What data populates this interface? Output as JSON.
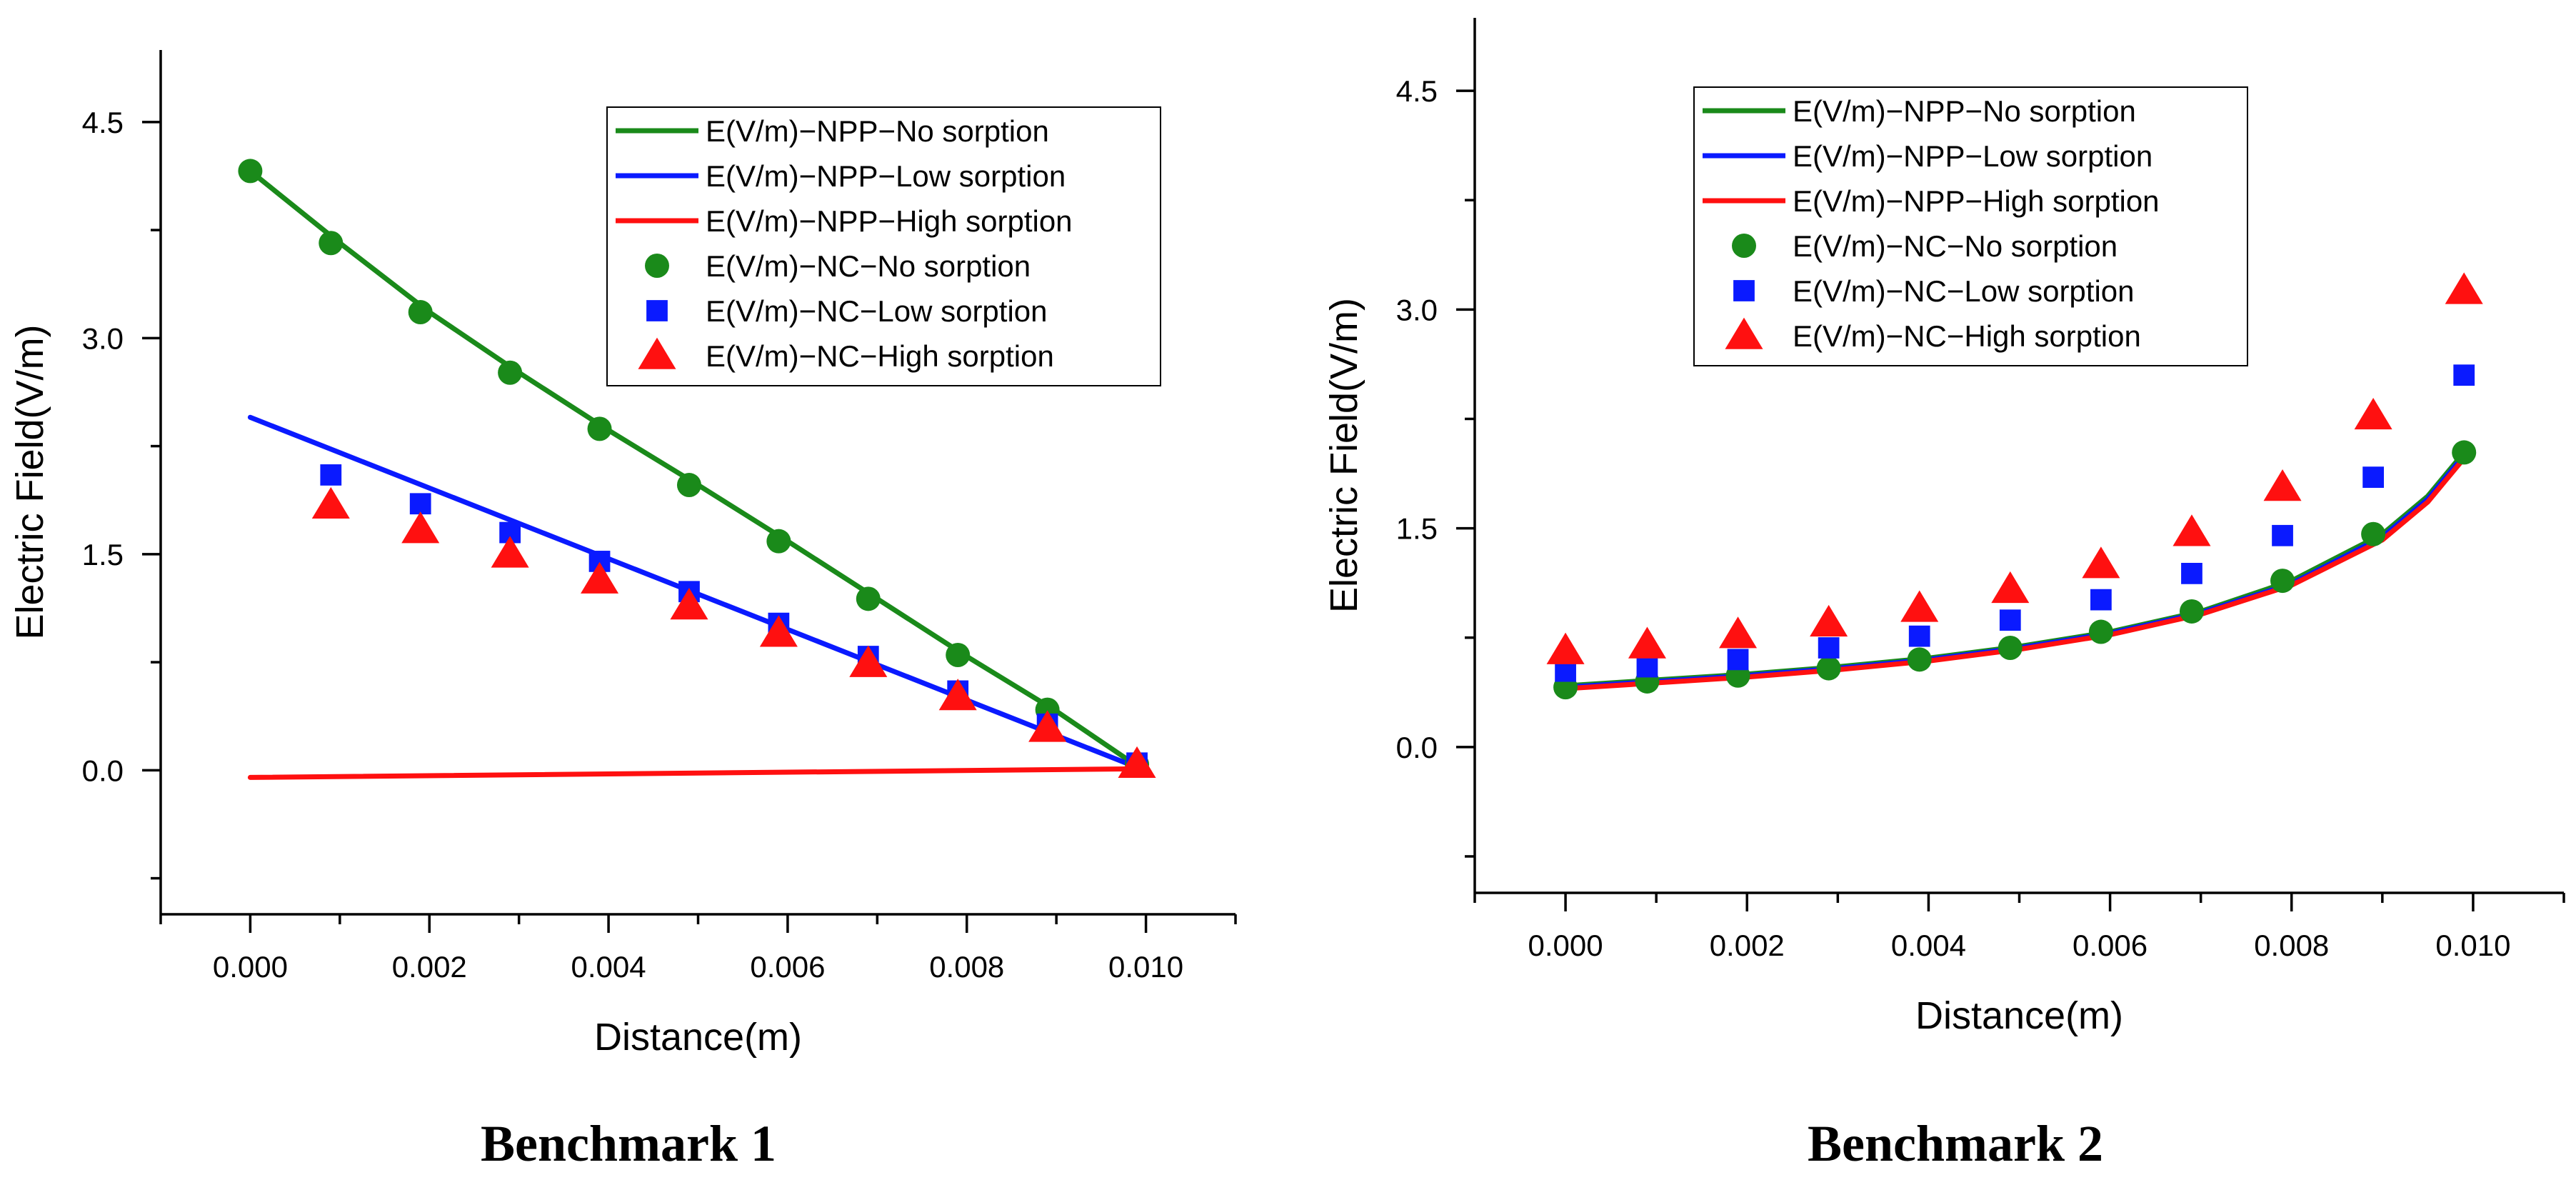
{
  "colors": {
    "no_sorption": "#1a8a1a",
    "low_sorption": "#0a1aff",
    "high_sorption": "#ff1010"
  },
  "chart_data": [
    {
      "type": "line",
      "caption": "Benchmark 1",
      "xlabel": "Distance(m)",
      "ylabel": "Electric Field(V/m)",
      "xlim": [
        -0.001,
        0.011
      ],
      "ylim": [
        -1.0,
        5.0
      ],
      "xticks": [
        "0.000",
        "0.002",
        "0.004",
        "0.006",
        "0.008",
        "0.010"
      ],
      "xtick_values": [
        0.0,
        0.002,
        0.004,
        0.006,
        0.008,
        0.01
      ],
      "yticks": [
        "0.0",
        "1.5",
        "3.0",
        "4.5"
      ],
      "ytick_values": [
        0.0,
        1.5,
        3.0,
        4.5
      ],
      "legend_position": "top-right",
      "series": [
        {
          "name": "E(V/m)−NPP−No sorption",
          "kind": "line",
          "color_key": "no_sorption",
          "x": [
            0.0,
            0.001,
            0.002,
            0.003,
            0.004,
            0.005,
            0.006,
            0.007,
            0.008,
            0.009,
            0.0099
          ],
          "y": [
            4.16,
            3.66,
            3.18,
            2.76,
            2.36,
            1.98,
            1.59,
            1.19,
            0.79,
            0.41,
            0.03
          ]
        },
        {
          "name": "E(V/m)−NPP−Low sorption",
          "kind": "line",
          "color_key": "low_sorption",
          "x": [
            0.0,
            0.0099
          ],
          "y": [
            2.45,
            0.02
          ]
        },
        {
          "name": "E(V/m)−NPP−High sorption",
          "kind": "line",
          "color_key": "high_sorption",
          "x": [
            0.0,
            0.0099
          ],
          "y": [
            -0.05,
            0.01
          ]
        },
        {
          "name": "E(V/m)−NC−No sorption",
          "kind": "circle",
          "color_key": "no_sorption",
          "x": [
            0.0,
            0.0009,
            0.0019,
            0.0029,
            0.0039,
            0.0049,
            0.0059,
            0.0069,
            0.0079,
            0.0089,
            0.0099
          ],
          "y": [
            4.16,
            3.66,
            3.18,
            2.76,
            2.37,
            1.98,
            1.59,
            1.19,
            0.8,
            0.42,
            0.04
          ]
        },
        {
          "name": "E(V/m)−NC−Low sorption",
          "kind": "square",
          "color_key": "low_sorption",
          "x": [
            0.0009,
            0.0019,
            0.0029,
            0.0039,
            0.0049,
            0.0059,
            0.0069,
            0.0079,
            0.0089,
            0.0099
          ],
          "y": [
            2.05,
            1.85,
            1.65,
            1.45,
            1.24,
            1.02,
            0.79,
            0.55,
            0.32,
            0.05
          ]
        },
        {
          "name": "E(V/m)−NC−High sorption",
          "kind": "triangle",
          "color_key": "high_sorption",
          "x": [
            0.0009,
            0.0019,
            0.0029,
            0.0039,
            0.0049,
            0.0059,
            0.0069,
            0.0079,
            0.0089,
            0.0099
          ],
          "y": [
            1.84,
            1.67,
            1.5,
            1.32,
            1.14,
            0.95,
            0.74,
            0.51,
            0.29,
            0.04
          ]
        }
      ]
    },
    {
      "type": "line",
      "caption": "Benchmark 2",
      "xlabel": "Distance(m)",
      "ylabel": "Electric Field(V/m)",
      "xlim": [
        -0.001,
        0.011
      ],
      "ylim": [
        -1.0,
        5.0
      ],
      "xticks": [
        "0.000",
        "0.002",
        "0.004",
        "0.006",
        "0.008",
        "0.010"
      ],
      "xtick_values": [
        0.0,
        0.002,
        0.004,
        0.006,
        0.008,
        0.01
      ],
      "yticks": [
        "0.0",
        "1.5",
        "3.0",
        "4.5"
      ],
      "ytick_values": [
        0.0,
        1.5,
        3.0,
        4.5
      ],
      "legend_position": "top-right",
      "series": [
        {
          "name": "E(V/m)−NPP−No sorption",
          "kind": "line",
          "color_key": "no_sorption",
          "x": [
            0.0,
            0.001,
            0.002,
            0.003,
            0.004,
            0.005,
            0.006,
            0.007,
            0.008,
            0.009,
            0.0095,
            0.0099
          ],
          "y": [
            0.42,
            0.46,
            0.5,
            0.55,
            0.61,
            0.69,
            0.79,
            0.93,
            1.14,
            1.46,
            1.72,
            2.02
          ]
        },
        {
          "name": "E(V/m)−NPP−Low sorption",
          "kind": "line",
          "color_key": "low_sorption",
          "x": [
            0.0,
            0.001,
            0.002,
            0.003,
            0.004,
            0.005,
            0.006,
            0.007,
            0.008,
            0.009,
            0.0095,
            0.0099
          ],
          "y": [
            0.41,
            0.45,
            0.49,
            0.54,
            0.6,
            0.68,
            0.78,
            0.92,
            1.12,
            1.44,
            1.7,
            2.0
          ]
        },
        {
          "name": "E(V/m)−NPP−High sorption",
          "kind": "line",
          "color_key": "high_sorption",
          "x": [
            0.0,
            0.001,
            0.002,
            0.003,
            0.004,
            0.005,
            0.006,
            0.007,
            0.008,
            0.009,
            0.0095,
            0.0099
          ],
          "y": [
            0.4,
            0.44,
            0.48,
            0.53,
            0.59,
            0.67,
            0.77,
            0.91,
            1.11,
            1.42,
            1.68,
            1.98
          ]
        },
        {
          "name": "E(V/m)−NC−No sorption",
          "kind": "circle",
          "color_key": "no_sorption",
          "x": [
            0.0,
            0.0009,
            0.0019,
            0.0029,
            0.0039,
            0.0049,
            0.0059,
            0.0069,
            0.0079,
            0.0089,
            0.0099
          ],
          "y": [
            0.41,
            0.45,
            0.49,
            0.54,
            0.6,
            0.68,
            0.79,
            0.93,
            1.14,
            1.46,
            2.02
          ]
        },
        {
          "name": "E(V/m)−NC−Low sorption",
          "kind": "square",
          "color_key": "low_sorption",
          "x": [
            0.0,
            0.0009,
            0.0019,
            0.0029,
            0.0039,
            0.0049,
            0.0059,
            0.0069,
            0.0079,
            0.0089,
            0.0099
          ],
          "y": [
            0.52,
            0.55,
            0.6,
            0.68,
            0.76,
            0.87,
            1.01,
            1.19,
            1.45,
            1.85,
            2.55
          ]
        },
        {
          "name": "E(V/m)−NC−High sorption",
          "kind": "triangle",
          "color_key": "high_sorption",
          "x": [
            0.0,
            0.0009,
            0.0019,
            0.0029,
            0.0039,
            0.0049,
            0.0059,
            0.0069,
            0.0079,
            0.0089,
            0.0099
          ],
          "y": [
            0.66,
            0.7,
            0.77,
            0.85,
            0.95,
            1.08,
            1.25,
            1.47,
            1.78,
            2.27,
            3.13
          ]
        }
      ]
    }
  ]
}
